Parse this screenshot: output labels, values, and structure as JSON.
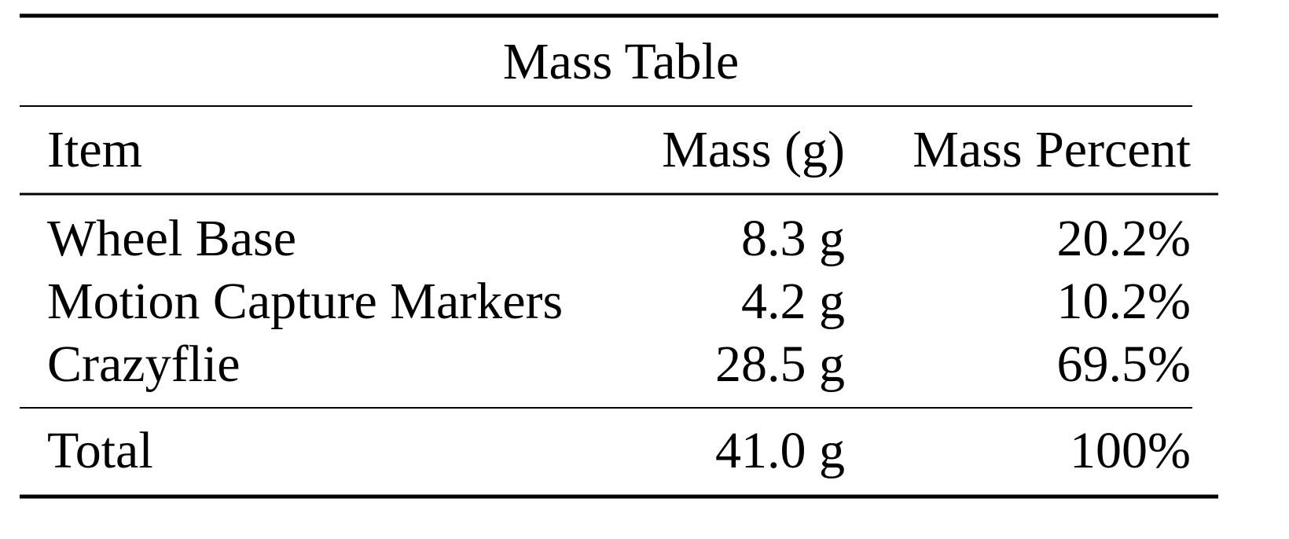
{
  "table": {
    "title": "Mass Table",
    "header": [
      "Item",
      "Mass (g)",
      "Mass Percent"
    ],
    "rows": [
      [
        "Wheel Base",
        "8.3 g",
        "20.2%"
      ],
      [
        "Motion Capture Markers",
        "4.2 g",
        "10.2%"
      ],
      [
        "Crazyflie",
        "28.5 g",
        "69.5%"
      ]
    ],
    "total": [
      "Total",
      "41.0 g",
      "100%"
    ]
  }
}
